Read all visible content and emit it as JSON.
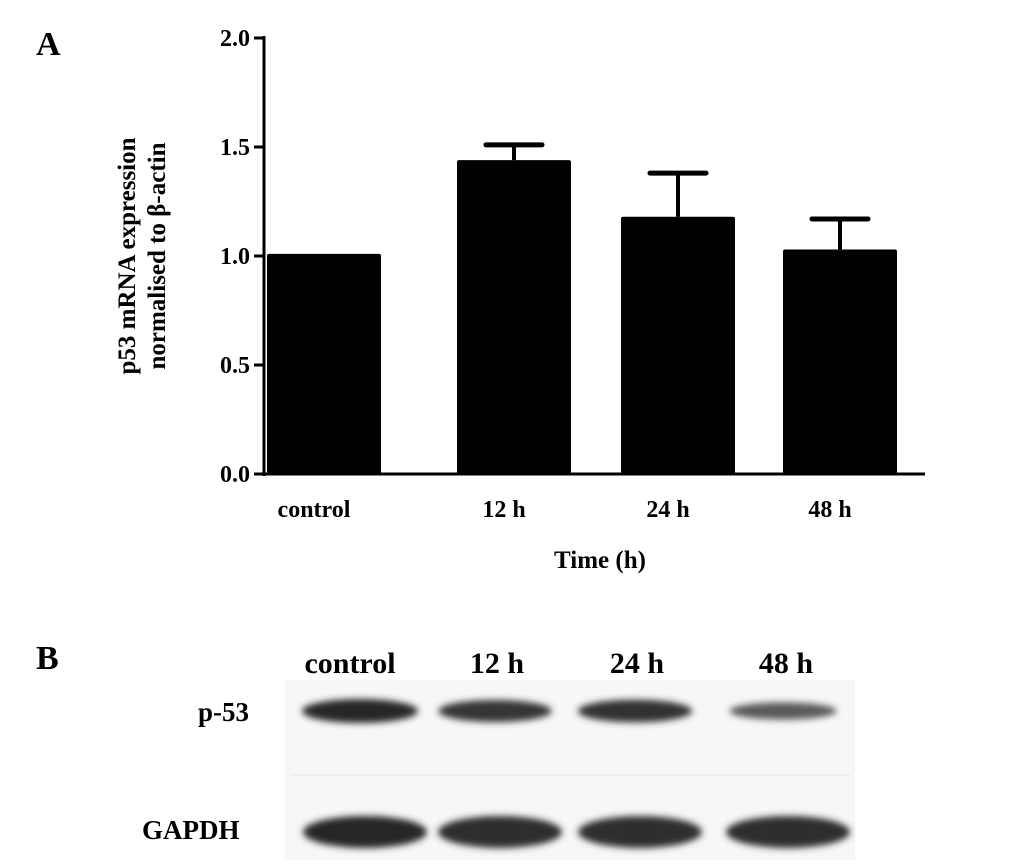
{
  "panels": {
    "a": "A",
    "b": "B"
  },
  "chart_data": {
    "type": "bar",
    "categories": [
      "control",
      "12 h",
      "24 h",
      "48 h"
    ],
    "values": [
      1.01,
      1.44,
      1.18,
      1.03
    ],
    "error_upper": [
      1.01,
      1.51,
      1.38,
      1.17
    ],
    "xlabel": "Time (h)",
    "ylabel_line1": "p53 mRNA expression",
    "ylabel_line2": "normalised to β-actin",
    "ylim": [
      0,
      2.0
    ],
    "yticks": [
      "0.0",
      "0.5",
      "1.0",
      "1.5",
      "2.0"
    ],
    "grid": false,
    "bar_color": "#000000"
  },
  "blot": {
    "lanes": [
      "control",
      "12 h",
      "24 h",
      "48 h"
    ],
    "rows": [
      "p-53",
      "GAPDH"
    ],
    "p53_intensity": [
      1.0,
      0.85,
      0.9,
      0.45
    ],
    "gapdh_intensity": [
      1.0,
      0.95,
      0.95,
      0.95
    ]
  }
}
